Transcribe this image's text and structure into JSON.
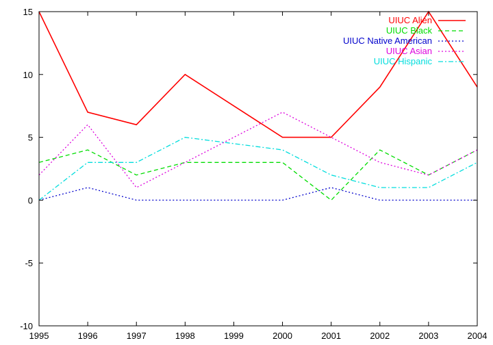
{
  "chart_data": {
    "type": "line",
    "title": "",
    "xlabel": "",
    "ylabel": "",
    "x": [
      1995,
      1996,
      1997,
      1998,
      1999,
      2000,
      2001,
      2002,
      2003,
      2004
    ],
    "xlim": [
      1995,
      2004
    ],
    "ylim": [
      -10,
      15
    ],
    "xticks": [
      "1995",
      "1996",
      "1997",
      "1998",
      "1999",
      "2000",
      "2001",
      "2002",
      "2003",
      "2004"
    ],
    "yticks": [
      "-10",
      "-5",
      "0",
      "5",
      "10",
      "15"
    ],
    "grid": false,
    "legend_position": "top-right",
    "series": [
      {
        "name": "UIUC Alien",
        "color": "#ff0000",
        "dash": "solid",
        "values": [
          15,
          7,
          6,
          10,
          7.5,
          5,
          5,
          9,
          15,
          9
        ]
      },
      {
        "name": "UIUC Black",
        "color": "#00dd00",
        "dash": "dashed",
        "values": [
          3,
          4,
          2,
          3,
          3,
          3,
          0,
          4,
          2,
          4
        ]
      },
      {
        "name": "UIUC Native American",
        "color": "#0000cc",
        "dash": "dotted",
        "values": [
          0,
          1,
          0,
          0,
          0,
          0,
          1,
          0,
          0,
          0
        ]
      },
      {
        "name": "UIUC Asian",
        "color": "#dd00dd",
        "dash": "dotted",
        "values": [
          2,
          6,
          1,
          3,
          5,
          7,
          5,
          3,
          2,
          4
        ]
      },
      {
        "name": "UIUC Hispanic",
        "color": "#00dddd",
        "dash": "dash-dot",
        "values": [
          0,
          3,
          3,
          5,
          4.5,
          4,
          2,
          1,
          1,
          3
        ]
      }
    ]
  }
}
